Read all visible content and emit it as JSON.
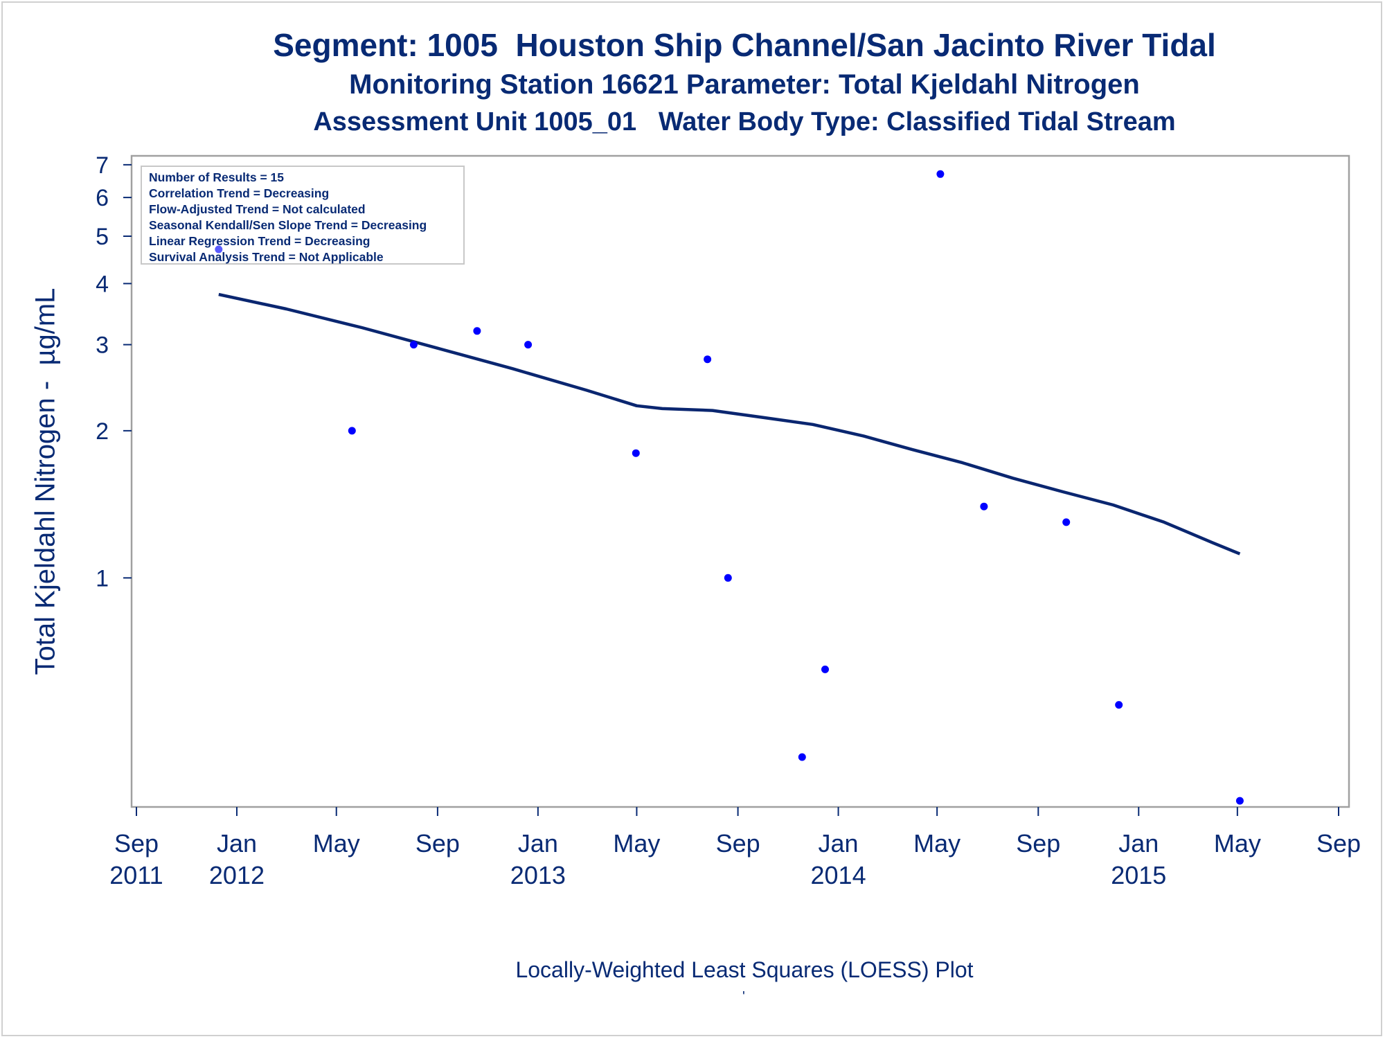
{
  "title_line1": "Segment: 1005  Houston Ship Channel/San Jacinto River Tidal",
  "title_line2": "Monitoring Station 16621 Parameter: Total Kjeldahl Nitrogen",
  "title_line3": "Assessment Unit 1005_01   Water Body Type: Classified Tidal Stream",
  "stats": [
    "Number of Results = 15",
    "Correlation Trend = Decreasing",
    "Flow-Adjusted Trend = Not calculated",
    "Seasonal Kendall/Sen Slope Trend = Decreasing",
    "Linear Regression Trend = Decreasing",
    "Survival Analysis Trend = Not Applicable"
  ],
  "footnote": "Locally-Weighted Least Squares (LOESS) Plot",
  "footnote_mark": "'",
  "colors": {
    "text": "#082a74",
    "points": "#0000ff",
    "loess": "#0a2670",
    "frame": "#a0a0a0"
  },
  "chart_data": {
    "type": "scatter",
    "ylabel": "Total Kjeldahl Nitrogen -  µg/mL",
    "xlabel": "",
    "y_scale": "log",
    "ylim": [
      0.34,
      7.3
    ],
    "xlim": [
      "2011-09-01",
      "2015-09-01"
    ],
    "y_ticks": [
      1,
      2,
      3,
      4,
      5,
      6,
      7
    ],
    "x_ticks": [
      {
        "date": "2011-09-01",
        "label": [
          "Sep",
          "2011"
        ]
      },
      {
        "date": "2012-01-01",
        "label": [
          "Jan",
          "2012"
        ]
      },
      {
        "date": "2012-05-01",
        "label": [
          "May",
          ""
        ]
      },
      {
        "date": "2012-09-01",
        "label": [
          "Sep",
          ""
        ]
      },
      {
        "date": "2013-01-01",
        "label": [
          "Jan",
          "2013"
        ]
      },
      {
        "date": "2013-05-01",
        "label": [
          "May",
          ""
        ]
      },
      {
        "date": "2013-09-01",
        "label": [
          "Sep",
          ""
        ]
      },
      {
        "date": "2014-01-01",
        "label": [
          "Jan",
          "2014"
        ]
      },
      {
        "date": "2014-05-01",
        "label": [
          "May",
          ""
        ]
      },
      {
        "date": "2014-09-01",
        "label": [
          "Sep",
          ""
        ]
      },
      {
        "date": "2015-01-01",
        "label": [
          "Jan",
          "2015"
        ]
      },
      {
        "date": "2015-05-01",
        "label": [
          "May",
          ""
        ]
      },
      {
        "date": "2015-09-01",
        "label": [
          "Sep",
          ""
        ]
      }
    ],
    "series": [
      {
        "kind": "points",
        "x": [
          "2011-12-10",
          "2012-05-20",
          "2012-08-03",
          "2012-10-19",
          "2012-12-20",
          "2013-04-30",
          "2013-07-26",
          "2013-08-20",
          "2013-11-18",
          "2013-12-16",
          "2014-05-05",
          "2014-06-27",
          "2014-10-05",
          "2014-12-08",
          "2015-05-04"
        ],
        "values": [
          4.7,
          2.0,
          3.0,
          3.2,
          3.0,
          1.8,
          2.8,
          1.0,
          0.43,
          0.65,
          6.7,
          1.4,
          1.3,
          0.55,
          0.35
        ]
      },
      {
        "kind": "loess",
        "x": [
          "2011-12-10",
          "2012-03-01",
          "2012-06-01",
          "2012-09-01",
          "2012-12-01",
          "2013-03-01",
          "2013-05-01",
          "2013-06-01",
          "2013-08-01",
          "2013-10-01",
          "2013-12-01",
          "2014-02-01",
          "2014-04-01",
          "2014-06-01",
          "2014-08-01",
          "2014-10-01",
          "2014-12-01",
          "2015-02-01",
          "2015-04-01",
          "2015-05-04"
        ],
        "values": [
          3.8,
          3.55,
          3.25,
          2.95,
          2.68,
          2.42,
          2.25,
          2.22,
          2.2,
          2.13,
          2.06,
          1.95,
          1.83,
          1.72,
          1.6,
          1.5,
          1.41,
          1.3,
          1.18,
          1.12
        ]
      }
    ]
  }
}
